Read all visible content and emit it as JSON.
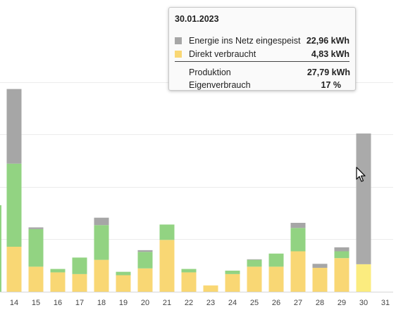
{
  "colors": {
    "grid_export": "#a6a6a6",
    "grid_export_highlight": "#aaaaaa",
    "direct": "#f9d774",
    "direct_highlight": "#fbec7f",
    "battery": "#92d382"
  },
  "chart_data": {
    "type": "bar",
    "stacked": true,
    "categories": [
      "14",
      "15",
      "16",
      "17",
      "18",
      "19",
      "20",
      "21",
      "22",
      "23",
      "24",
      "25",
      "26",
      "27",
      "28",
      "29",
      "30",
      "31"
    ],
    "series": [
      {
        "name": "Direkt verbraucht",
        "color": "#f9d774",
        "values": [
          7.9,
          4.4,
          3.4,
          3.1,
          5.6,
          2.9,
          4.1,
          9.1,
          3.4,
          1.1,
          3.1,
          4.4,
          4.4,
          7.1,
          4.2,
          5.9,
          4.83,
          0
        ]
      },
      {
        "name": "",
        "color": "#92d382",
        "values": [
          14.6,
          6.6,
          0.6,
          2.9,
          6.1,
          0.6,
          2.9,
          2.7,
          0.6,
          0,
          0.6,
          1.2,
          2.3,
          4.1,
          0,
          1.2,
          0,
          0
        ]
      },
      {
        "name": "Energie ins Netz eingespeist",
        "color": "#a6a6a6",
        "values": [
          13.1,
          0.3,
          0,
          0,
          1.3,
          0,
          0.3,
          0,
          0,
          0,
          0,
          0.1,
          0,
          0.9,
          0.7,
          0.7,
          22.96,
          0
        ]
      }
    ],
    "highlight_index": 16,
    "ylim": [
      0,
      46
    ],
    "grid": true
  },
  "tooltip": {
    "date": "30.01.2023",
    "rows": [
      {
        "label": "Energie ins Netz eingespeist",
        "value": "22,96 kWh",
        "color": "#a6a6a6"
      },
      {
        "label": "Direkt verbraucht",
        "value": "4,83 kWh",
        "color": "#f9d774"
      }
    ],
    "summary": [
      {
        "label": "Produktion",
        "value": "27,79 kWh"
      },
      {
        "label": "Eigenverbrauch",
        "value": "17 %"
      }
    ]
  }
}
